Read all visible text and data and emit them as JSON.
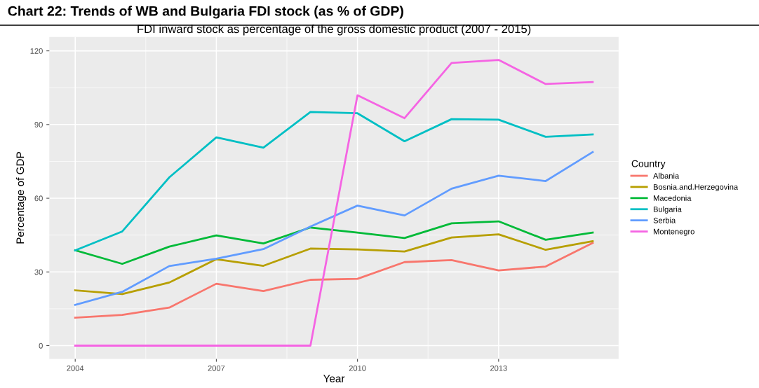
{
  "chart_data": {
    "type": "line",
    "title": "FDI inward stock as percentage of the gross domestic product (2007 - 2015)",
    "annotations": [
      "Chart 22: Trends of WB and Bulgaria FDI stock (as % of GDP)"
    ],
    "xlabel": "Year",
    "ylabel": "Percentage of GDP",
    "legend_title": "Country",
    "legend": "right",
    "grid": true,
    "marker": "none",
    "line_style": "solid",
    "x": [
      2004,
      2005,
      2006,
      2007,
      2008,
      2009,
      2010,
      2011,
      2012,
      2013,
      2014,
      2015
    ],
    "xlim": [
      2003.45,
      2015.55
    ],
    "xticks": [
      2004,
      2007,
      2010,
      2013
    ],
    "ylim": [
      -5.4,
      125.7
    ],
    "yticks": [
      0,
      30,
      60,
      90,
      120
    ],
    "series": [
      {
        "name": "Albania",
        "color": "#f8766d",
        "values": [
          11.4,
          12.5,
          15.5,
          25.2,
          22.2,
          26.8,
          27.2,
          34,
          34.8,
          30.6,
          32.2,
          41.8
        ]
      },
      {
        "name": "Bosnia.and.Herzegovina",
        "color": "#b79f00",
        "values": [
          22.5,
          21,
          25.7,
          35.2,
          32.5,
          39.5,
          39.2,
          38.3,
          44,
          45.3,
          39,
          42.5
        ]
      },
      {
        "name": "Macedonia",
        "color": "#00ba38",
        "values": [
          38.8,
          33.3,
          40.3,
          44.9,
          41.6,
          48.1,
          46,
          43.8,
          49.8,
          50.6,
          43.1,
          46
        ]
      },
      {
        "name": "Bulgaria",
        "color": "#00bfc4",
        "values": [
          38.8,
          46.5,
          68.5,
          84.8,
          80.6,
          95.1,
          94.6,
          83.2,
          92.2,
          92,
          85,
          86
        ]
      },
      {
        "name": "Serbia",
        "color": "#619cff",
        "values": [
          16.6,
          21.9,
          32.4,
          35.4,
          39.3,
          48.5,
          57,
          53,
          63.9,
          69.2,
          67,
          78.8
        ]
      },
      {
        "name": "Montenegro",
        "color": "#f564e3",
        "values": [
          0,
          0,
          0,
          0,
          0,
          0,
          101.9,
          92.6,
          115.1,
          116.3,
          106.5,
          107.3
        ]
      }
    ]
  }
}
